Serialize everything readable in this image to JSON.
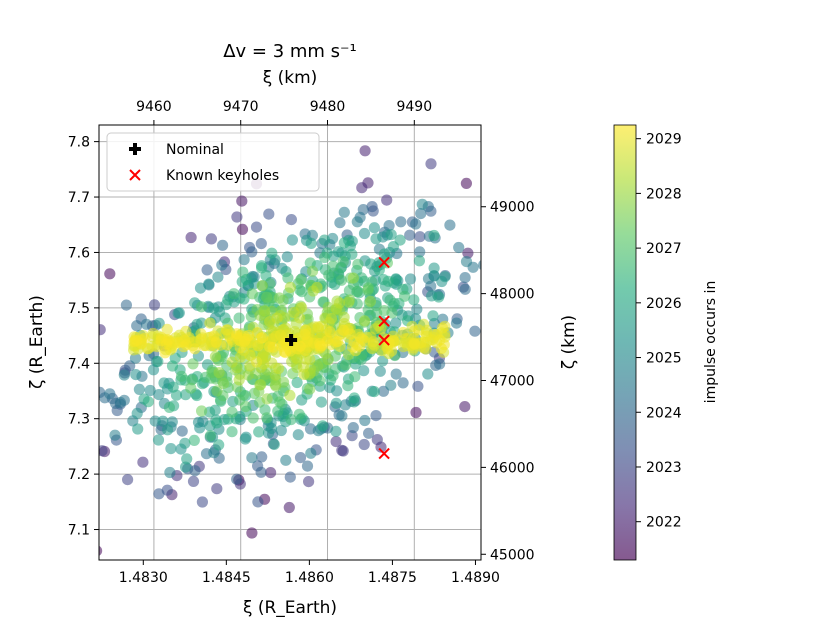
{
  "chart_data": {
    "type": "scatter",
    "title": "Δv = 3 mm s⁻¹",
    "xlabel": "ξ (R_Earth)",
    "ylabel": "ζ (R_Earth)",
    "top_xlabel": "ξ (km)",
    "right_ylabel": "ζ (km)",
    "colorbar_label": "impulse occurs in",
    "xlim": [
      1.4822,
      1.4891
    ],
    "ylim": [
      7.045,
      7.83
    ],
    "x_ticks": [
      1.483,
      1.4845,
      1.486,
      1.4875,
      1.489
    ],
    "x_tick_labels": [
      "1.4830",
      "1.4845",
      "1.4860",
      "1.4875",
      "1.4890"
    ],
    "y_ticks": [
      7.1,
      7.2,
      7.3,
      7.4,
      7.5,
      7.6,
      7.7,
      7.8
    ],
    "y_tick_labels": [
      "7.1",
      "7.2",
      "7.3",
      "7.4",
      "7.5",
      "7.6",
      "7.7",
      "7.8"
    ],
    "top_ticks_km": [
      9460,
      9470,
      9480,
      9490
    ],
    "top_tick_labels": [
      "9460",
      "9470",
      "9480",
      "9490"
    ],
    "right_ticks_km": [
      45000,
      46000,
      47000,
      48000,
      49000
    ],
    "right_tick_labels": [
      "45000",
      "46000",
      "47000",
      "48000",
      "49000"
    ],
    "earth_radius_km": 6378.1366,
    "colorbar_range": [
      2021.3,
      2029.25
    ],
    "colorbar_ticks": [
      2022,
      2023,
      2024,
      2025,
      2026,
      2027,
      2028,
      2029
    ],
    "colorbar_tick_labels": [
      "2022",
      "2023",
      "2024",
      "2025",
      "2026",
      "2027",
      "2028",
      "2029"
    ],
    "cloud": {
      "count": 900,
      "center": [
        1.48567,
        7.44
      ],
      "sigma": [
        0.00155,
        0.115
      ],
      "correlation": 0.45,
      "yellow_band": {
        "xlim": [
          1.4828,
          1.4885
        ],
        "y": 7.44,
        "thickness": 0.012
      },
      "year_range": [
        2021.4,
        2029.2
      ]
    },
    "nominal": {
      "x": 1.48567,
      "y": 7.442
    },
    "keyholes": [
      {
        "x": 1.48735,
        "y": 7.582
      },
      {
        "x": 1.48735,
        "y": 7.476
      },
      {
        "x": 1.48735,
        "y": 7.442
      },
      {
        "x": 1.48735,
        "y": 7.237
      }
    ],
    "legend": [
      {
        "label": "Nominal",
        "marker": "plus",
        "color": "#000000"
      },
      {
        "label": "Known keyholes",
        "marker": "x",
        "color": "#ff0000"
      }
    ],
    "legend_position": "upper-left",
    "grid": true,
    "colormap": "viridis"
  }
}
